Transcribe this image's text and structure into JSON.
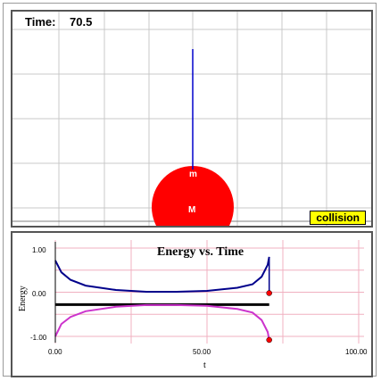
{
  "simulation": {
    "time_label": "Time:",
    "time_value": "70.5",
    "small_ball_label": "m",
    "big_ball_label": "M",
    "collision_label": "collision",
    "ball_color": "#ff0000",
    "stick_color": "#0000cc"
  },
  "chart_data": {
    "type": "line",
    "title": "Energy vs. Time",
    "xlabel": "t",
    "ylabel": "Energy",
    "xlim": [
      0,
      100
    ],
    "ylim": [
      -1.0,
      1.0
    ],
    "x_ticks": [
      "0.00",
      "50.00",
      "100.00"
    ],
    "y_ticks": [
      "1.00",
      "0.00",
      "-1.00"
    ],
    "grid": true,
    "series": [
      {
        "color": "#00008b",
        "x": [
          0,
          2,
          5,
          10,
          20,
          30,
          40,
          50,
          60,
          65,
          68,
          70,
          70.5
        ],
        "y": [
          0.72,
          0.45,
          0.28,
          0.15,
          0.05,
          0.01,
          0.01,
          0.03,
          0.1,
          0.18,
          0.35,
          0.62,
          0.8
        ]
      },
      {
        "color": "#000000",
        "x": [
          0,
          70.5
        ],
        "y": [
          -0.28,
          -0.28
        ]
      },
      {
        "color": "#cc33cc",
        "x": [
          0,
          2,
          5,
          10,
          20,
          30,
          40,
          50,
          60,
          65,
          68,
          70,
          70.5
        ],
        "y": [
          -1.0,
          -0.72,
          -0.56,
          -0.43,
          -0.33,
          -0.29,
          -0.29,
          -0.31,
          -0.38,
          -0.46,
          -0.63,
          -0.9,
          -1.08
        ]
      }
    ],
    "markers": [
      {
        "x": 70.5,
        "y": -0.02,
        "color": "#ff0000"
      },
      {
        "x": 70.5,
        "y": -1.08,
        "color": "#ff0000"
      }
    ]
  }
}
